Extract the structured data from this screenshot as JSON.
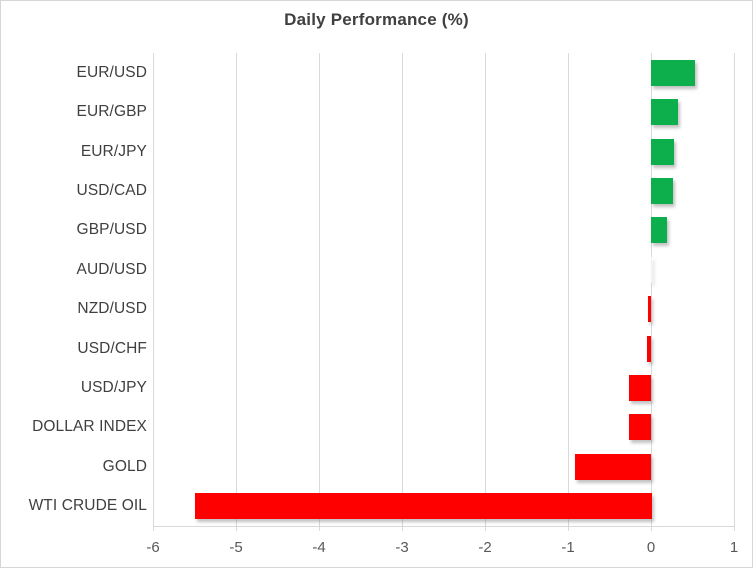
{
  "chart_data": {
    "type": "bar",
    "orientation": "horizontal",
    "title": "Daily Performance (%)",
    "categories": [
      "EUR/USD",
      "EUR/GBP",
      "EUR/JPY",
      "USD/CAD",
      "GBP/USD",
      "AUD/USD",
      "NZD/USD",
      "USD/CHF",
      "USD/JPY",
      "DOLLAR INDEX",
      "GOLD",
      "WTI CRUDE OIL"
    ],
    "values": [
      0.53,
      0.33,
      0.28,
      0.27,
      0.19,
      0.0,
      -0.04,
      -0.05,
      -0.26,
      -0.26,
      -0.92,
      -5.5
    ],
    "xlim": [
      -6,
      1
    ],
    "x_ticks": [
      -6,
      -5,
      -4,
      -3,
      -2,
      -1,
      0,
      1
    ],
    "grid": true,
    "legend": "none",
    "colors": {
      "positive_bar": "#0daf4c",
      "negative_bar": "#ff0000",
      "gridline": "#d9d9d9",
      "axis_line": "#d9d9d9",
      "title_text": "#404040",
      "category_text": "#3f3f3f",
      "tick_text": "#595959",
      "background": "#ffffff"
    }
  }
}
